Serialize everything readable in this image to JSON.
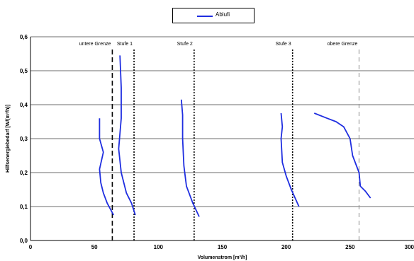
{
  "legend": {
    "series_name": "Ablufi",
    "color": "#1f2ee0"
  },
  "chart_data": {
    "type": "line",
    "title": "",
    "xlabel": "Volumenstrom [m³/h]",
    "ylabel": "Hilfsenergiebedarf [W/(m³/h)]",
    "xlim": [
      0,
      300
    ],
    "ylim": [
      0,
      0.6
    ],
    "x_ticks": [
      "0",
      "50",
      "100",
      "150",
      "200",
      "250",
      "300"
    ],
    "x_tick_values": [
      0,
      50,
      100,
      150,
      200,
      250,
      300
    ],
    "y_ticks": [
      "0,0",
      "0,1",
      "0,2",
      "0,3",
      "0,4",
      "0,5",
      "0,6"
    ],
    "y_tick_values": [
      0,
      0.1,
      0.2,
      0.3,
      0.4,
      0.5,
      0.6
    ],
    "grid": "horizontal",
    "legend_position": "top-center",
    "reference_lines": [
      {
        "label": "untere Grenze",
        "x": 64,
        "style": "long-dash",
        "color": "#000000"
      },
      {
        "label": "Stufe 1",
        "x": 81,
        "style": "dotted",
        "color": "#000000"
      },
      {
        "label": "Stufe 2",
        "x": 128,
        "style": "dotted",
        "color": "#000000"
      },
      {
        "label": "Stufe 3",
        "x": 205,
        "style": "dotted",
        "color": "#000000"
      },
      {
        "label": "obere Grenze",
        "x": 257,
        "style": "dash",
        "color": "#888888"
      }
    ],
    "series": [
      {
        "name": "Ablufi",
        "color": "#1f2ee0",
        "segments": [
          [
            [
              54,
              0.36
            ],
            [
              54,
              0.3
            ],
            [
              57,
              0.26
            ],
            [
              54,
              0.21
            ],
            [
              55,
              0.17
            ],
            [
              57,
              0.14
            ],
            [
              60,
              0.11
            ],
            [
              65,
              0.075
            ]
          ],
          [
            [
              70,
              0.545
            ],
            [
              71,
              0.45
            ],
            [
              71,
              0.4
            ],
            [
              71,
              0.36
            ],
            [
              69,
              0.27
            ],
            [
              71,
              0.2
            ],
            [
              75,
              0.14
            ],
            [
              79,
              0.11
            ],
            [
              82,
              0.075
            ]
          ],
          [
            [
              118,
              0.415
            ],
            [
              119,
              0.37
            ],
            [
              119,
              0.3
            ],
            [
              120,
              0.22
            ],
            [
              122,
              0.16
            ],
            [
              127,
              0.11
            ],
            [
              132,
              0.07
            ]
          ],
          [
            [
              196,
              0.375
            ],
            [
              197,
              0.335
            ],
            [
              196,
              0.3
            ],
            [
              197,
              0.23
            ],
            [
              200,
              0.19
            ],
            [
              204,
              0.15
            ],
            [
              210,
              0.1
            ]
          ],
          [
            [
              222,
              0.375
            ],
            [
              232,
              0.36
            ],
            [
              239,
              0.35
            ],
            [
              245,
              0.335
            ],
            [
              250,
              0.3
            ],
            [
              252,
              0.25
            ],
            [
              257,
              0.2
            ],
            [
              258,
              0.16
            ],
            [
              262,
              0.145
            ],
            [
              266,
              0.125
            ]
          ]
        ]
      }
    ]
  }
}
